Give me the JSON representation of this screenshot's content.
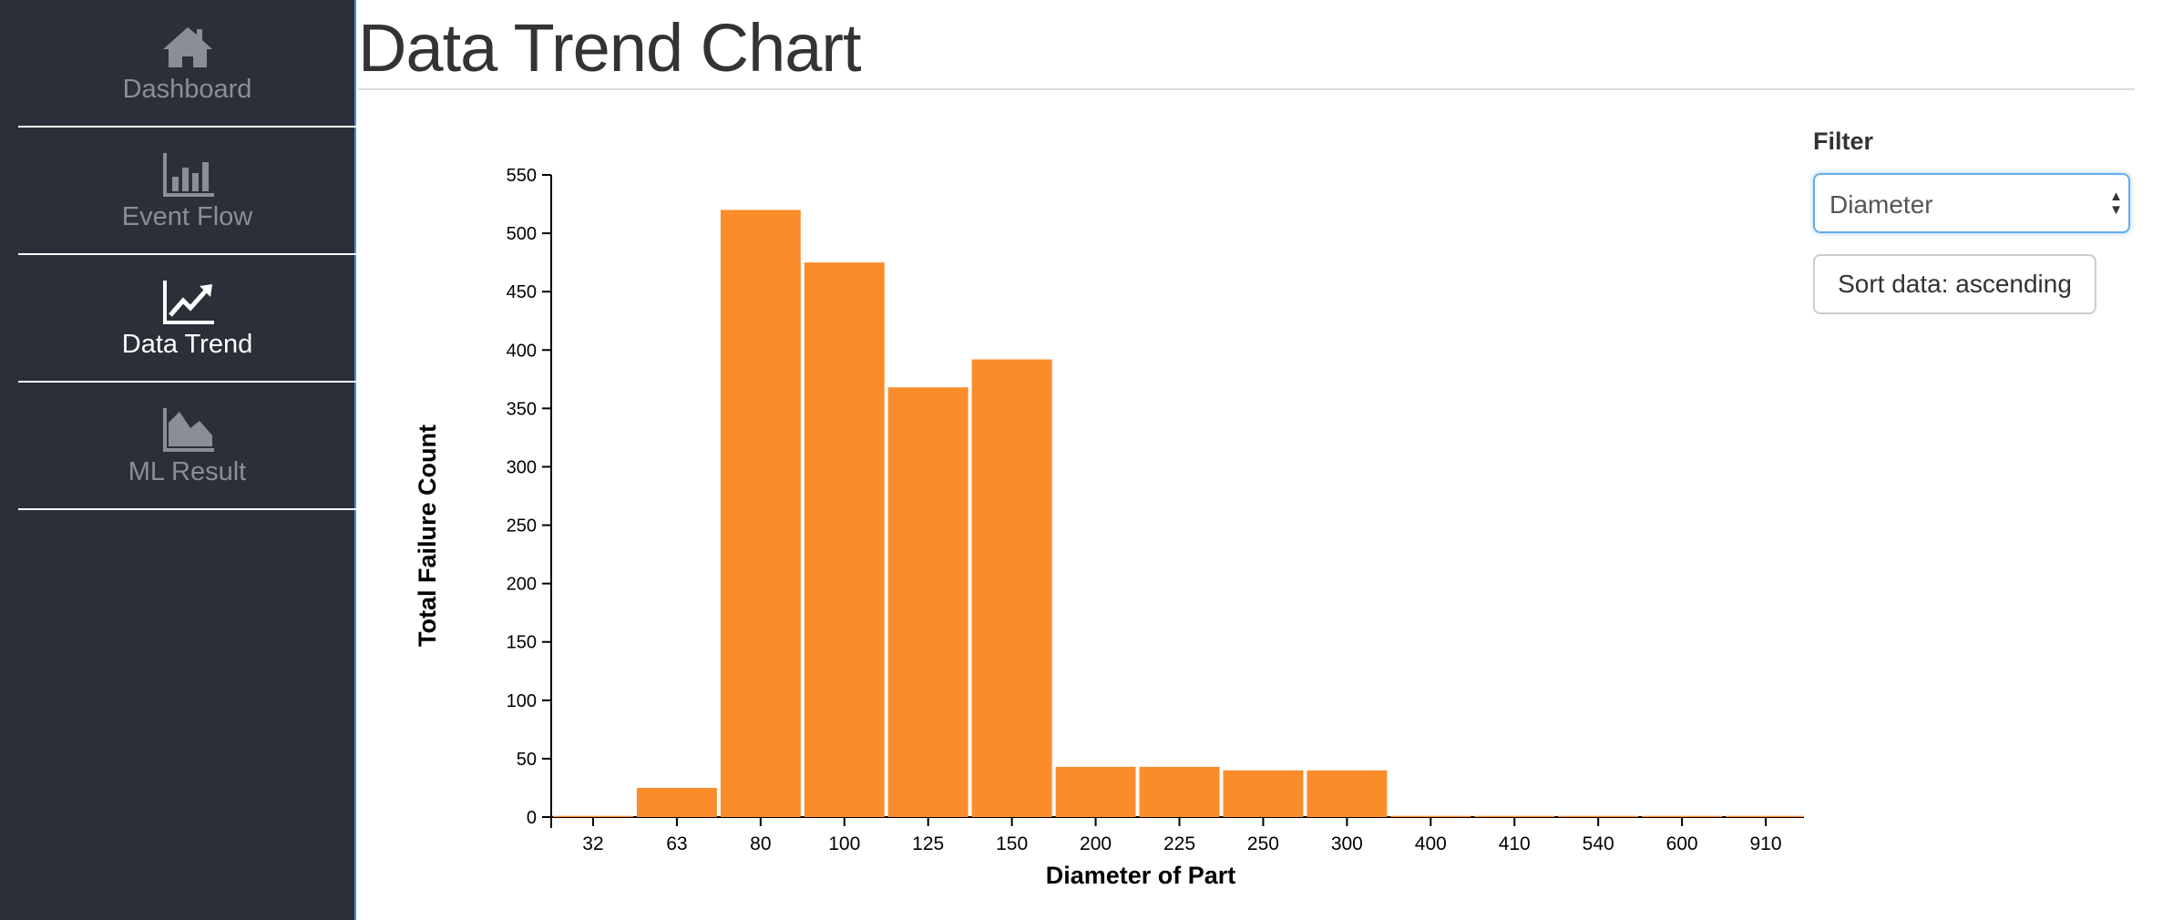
{
  "sidebar": {
    "items": [
      {
        "label": "Dashboard",
        "icon": "home-icon"
      },
      {
        "label": "Event Flow",
        "icon": "bar-chart-icon"
      },
      {
        "label": "Data Trend",
        "icon": "line-chart-icon",
        "active": true
      },
      {
        "label": "ML Result",
        "icon": "area-chart-icon"
      }
    ]
  },
  "page": {
    "title": "Data Trend Chart"
  },
  "filter": {
    "label": "Filter",
    "selected": "Diameter"
  },
  "sort_button": {
    "label": "Sort data: ascending"
  },
  "colors": {
    "bar": "#fb8c2a",
    "sidebar": "#2b2f38"
  },
  "chart_data": {
    "type": "bar",
    "categories": [
      "32",
      "63",
      "80",
      "100",
      "125",
      "150",
      "200",
      "225",
      "250",
      "300",
      "400",
      "410",
      "540",
      "600",
      "910"
    ],
    "values": [
      1,
      25,
      520,
      475,
      368,
      392,
      43,
      43,
      40,
      40,
      1,
      1,
      1,
      1,
      1
    ],
    "xlabel": "Diameter of Part",
    "ylabel": "Total Failure Count",
    "ylim": [
      0,
      550
    ],
    "yticks": [
      0,
      50,
      100,
      150,
      200,
      250,
      300,
      350,
      400,
      450,
      500,
      550
    ],
    "grid": false
  }
}
